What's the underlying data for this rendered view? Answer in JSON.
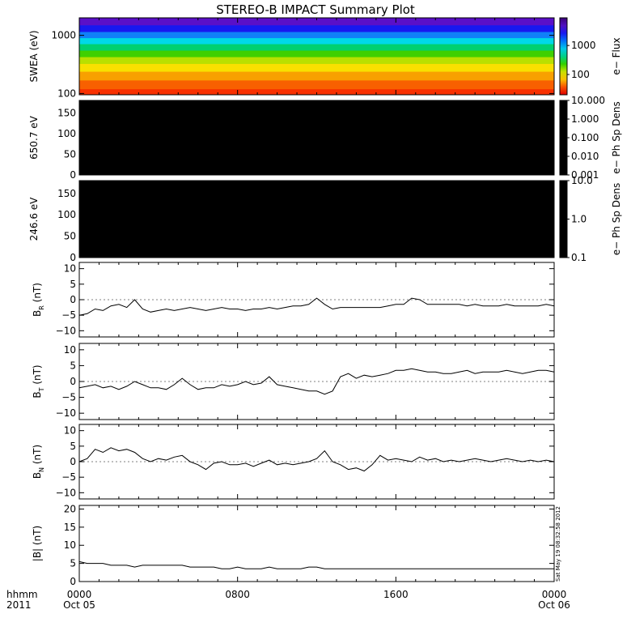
{
  "title": "STEREO-B IMPACT Summary Plot",
  "timestamp": "Sat May 19 08:32:58 2012",
  "time_axis": {
    "hhmm_label": "hhmm",
    "year_label": "2011",
    "ticks": [
      {
        "hour": 0,
        "top": "0000",
        "bottom": "Oct 05"
      },
      {
        "hour": 8,
        "top": "0800",
        "bottom": ""
      },
      {
        "hour": 16,
        "top": "1600",
        "bottom": ""
      },
      {
        "hour": 24,
        "top": "0000",
        "bottom": "Oct 06"
      }
    ]
  },
  "chart_data": [
    {
      "type": "heatmap",
      "panel": "swea",
      "ylabel": "SWEA (eV)",
      "ylog": true,
      "ylim": [
        95,
        2000
      ],
      "yticks": [
        {
          "value": 1000,
          "label": "1000"
        },
        {
          "value": 100,
          "label": "100"
        }
      ],
      "colorbar": {
        "label": "e− Flux",
        "log": true,
        "range": [
          20,
          9000
        ],
        "ticks": [
          {
            "value": 1000,
            "label": "1000"
          },
          {
            "value": 100,
            "label": "100"
          }
        ]
      },
      "bands": [
        {
          "energy_ev": 1700,
          "color": "#5a10c8"
        },
        {
          "energy_ev": 1300,
          "color": "#1818f0"
        },
        {
          "energy_ev": 1000,
          "color": "#1080f8"
        },
        {
          "energy_ev": 800,
          "color": "#00d8e8"
        },
        {
          "energy_ev": 620,
          "color": "#00d070"
        },
        {
          "energy_ev": 480,
          "color": "#40d000"
        },
        {
          "energy_ev": 370,
          "color": "#b8e000"
        },
        {
          "energy_ev": 280,
          "color": "#f8e000"
        },
        {
          "energy_ev": 200,
          "color": "#f8a000"
        },
        {
          "energy_ev": 140,
          "color": "#f86000"
        },
        {
          "energy_ev": 100,
          "color": "#f83000"
        }
      ]
    },
    {
      "type": "heatmap",
      "panel": "pad_650",
      "ylabel": "650.7 eV",
      "ylim": [
        0,
        180
      ],
      "yticks": [
        {
          "value": 150,
          "label": "150"
        },
        {
          "value": 100,
          "label": "100"
        },
        {
          "value": 50,
          "label": "50"
        },
        {
          "value": 0,
          "label": "0"
        }
      ],
      "fill": "#000000",
      "colorbar": {
        "label": "e− Ph Sp Dens",
        "log": true,
        "range": [
          0.001,
          10
        ],
        "ticks": [
          {
            "value": 10,
            "label": "10.000"
          },
          {
            "value": 1,
            "label": "1.000"
          },
          {
            "value": 0.1,
            "label": "0.100"
          },
          {
            "value": 0.01,
            "label": "0.010"
          },
          {
            "value": 0.001,
            "label": "0.001"
          }
        ]
      }
    },
    {
      "type": "heatmap",
      "panel": "pad_246",
      "ylabel": "246.6 eV",
      "ylim": [
        0,
        180
      ],
      "yticks": [
        {
          "value": 150,
          "label": "150"
        },
        {
          "value": 100,
          "label": "100"
        },
        {
          "value": 50,
          "label": "50"
        },
        {
          "value": 0,
          "label": "0"
        }
      ],
      "fill": "#000000",
      "colorbar": {
        "label": "e− Ph Sp Dens",
        "log": true,
        "range": [
          0.1,
          10
        ],
        "ticks": [
          {
            "value": 10,
            "label": "10.0"
          },
          {
            "value": 1,
            "label": "1.0"
          },
          {
            "value": 0.1,
            "label": "0.1"
          }
        ]
      }
    },
    {
      "type": "line",
      "panel": "br",
      "ylabel_main": "B",
      "ylabel_sub": "R",
      "ylabel_unit": " (nT)",
      "ylim": [
        -12,
        12
      ],
      "yticks": [
        {
          "value": 10,
          "label": "10"
        },
        {
          "value": 5,
          "label": "5"
        },
        {
          "value": 0,
          "label": "0"
        },
        {
          "value": -5,
          "label": "−5"
        },
        {
          "value": -10,
          "label": "−10"
        }
      ],
      "hours": [
        0,
        0.4,
        0.8,
        1.2,
        1.6,
        2.0,
        2.4,
        2.8,
        3.2,
        3.6,
        4.0,
        4.4,
        4.8,
        5.2,
        5.6,
        6.0,
        6.4,
        6.8,
        7.2,
        7.6,
        8.0,
        8.4,
        8.8,
        9.2,
        9.6,
        10.0,
        10.4,
        10.8,
        11.2,
        11.6,
        12.0,
        12.4,
        12.8,
        13.2,
        13.6,
        14.0,
        14.4,
        14.8,
        15.2,
        15.6,
        16.0,
        16.4,
        16.8,
        17.2,
        17.6,
        18.0,
        18.4,
        18.8,
        19.2,
        19.6,
        20.0,
        20.4,
        20.8,
        21.2,
        21.6,
        22.0,
        22.4,
        22.8,
        23.2,
        23.6,
        24.0
      ],
      "values": [
        -5,
        -4.5,
        -3,
        -3.5,
        -2,
        -1.5,
        -2.5,
        0,
        -3,
        -4,
        -3.5,
        -3,
        -3.5,
        -3,
        -2.5,
        -3,
        -3.5,
        -3,
        -2.5,
        -3,
        -3,
        -3.5,
        -3,
        -3,
        -2.5,
        -3,
        -2.5,
        -2,
        -2,
        -1.5,
        0.5,
        -1.5,
        -3,
        -2.5,
        -2.5,
        -2.5,
        -2.5,
        -2.5,
        -2.5,
        -2,
        -1.5,
        -1.5,
        0.5,
        0,
        -1.5,
        -1.5,
        -1.5,
        -1.5,
        -1.5,
        -2,
        -1.5,
        -2,
        -2,
        -2,
        -1.5,
        -2,
        -2,
        -2,
        -2,
        -1.5,
        -2
      ]
    },
    {
      "type": "line",
      "panel": "bt",
      "ylabel_main": "B",
      "ylabel_sub": "T",
      "ylabel_unit": " (nT)",
      "ylim": [
        -12,
        12
      ],
      "yticks": [
        {
          "value": 10,
          "label": "10"
        },
        {
          "value": 5,
          "label": "5"
        },
        {
          "value": 0,
          "label": "0"
        },
        {
          "value": -5,
          "label": "−5"
        },
        {
          "value": -10,
          "label": "−10"
        }
      ],
      "hours": [
        0,
        0.4,
        0.8,
        1.2,
        1.6,
        2.0,
        2.4,
        2.8,
        3.2,
        3.6,
        4.0,
        4.4,
        4.8,
        5.2,
        5.6,
        6.0,
        6.4,
        6.8,
        7.2,
        7.6,
        8.0,
        8.4,
        8.8,
        9.2,
        9.6,
        10.0,
        10.4,
        10.8,
        11.2,
        11.6,
        12.0,
        12.4,
        12.8,
        13.2,
        13.6,
        14.0,
        14.4,
        14.8,
        15.2,
        15.6,
        16.0,
        16.4,
        16.8,
        17.2,
        17.6,
        18.0,
        18.4,
        18.8,
        19.2,
        19.6,
        20.0,
        20.4,
        20.8,
        21.2,
        21.6,
        22.0,
        22.4,
        22.8,
        23.2,
        23.6,
        24.0
      ],
      "values": [
        -2,
        -1.5,
        -1,
        -2,
        -1.5,
        -2.5,
        -1.5,
        0,
        -1,
        -2,
        -2,
        -2.5,
        -1,
        1,
        -1,
        -2.5,
        -2,
        -2,
        -1,
        -1.5,
        -1,
        0,
        -1,
        -0.5,
        1.5,
        -1,
        -1.5,
        -2,
        -2.5,
        -3,
        -3,
        -4,
        -3,
        1.5,
        2.5,
        1,
        2,
        1.5,
        2,
        2.5,
        3.5,
        3.5,
        4,
        3.5,
        3,
        3,
        2.5,
        2.5,
        3,
        3.5,
        2.5,
        3,
        3,
        3,
        3.5,
        3,
        2.5,
        3,
        3.5,
        3.5,
        3
      ]
    },
    {
      "type": "line",
      "panel": "bn",
      "ylabel_main": "B",
      "ylabel_sub": "N",
      "ylabel_unit": " (nT)",
      "ylim": [
        -12,
        12
      ],
      "yticks": [
        {
          "value": 10,
          "label": "10"
        },
        {
          "value": 5,
          "label": "5"
        },
        {
          "value": 0,
          "label": "0"
        },
        {
          "value": -5,
          "label": "−5"
        },
        {
          "value": -10,
          "label": "−10"
        }
      ],
      "hours": [
        0,
        0.4,
        0.8,
        1.2,
        1.6,
        2.0,
        2.4,
        2.8,
        3.2,
        3.6,
        4.0,
        4.4,
        4.8,
        5.2,
        5.6,
        6.0,
        6.4,
        6.8,
        7.2,
        7.6,
        8.0,
        8.4,
        8.8,
        9.2,
        9.6,
        10.0,
        10.4,
        10.8,
        11.2,
        11.6,
        12.0,
        12.4,
        12.8,
        13.2,
        13.6,
        14.0,
        14.4,
        14.8,
        15.2,
        15.6,
        16.0,
        16.4,
        16.8,
        17.2,
        17.6,
        18.0,
        18.4,
        18.8,
        19.2,
        19.6,
        20.0,
        20.4,
        20.8,
        21.2,
        21.6,
        22.0,
        22.4,
        22.8,
        23.2,
        23.6,
        24.0
      ],
      "values": [
        0,
        1,
        4,
        3,
        4.5,
        3.5,
        4,
        3,
        1,
        0,
        1,
        0.5,
        1.5,
        2,
        0,
        -1,
        -2.5,
        -0.5,
        0,
        -1,
        -1,
        -0.5,
        -1.5,
        -0.5,
        0.5,
        -1,
        -0.5,
        -1,
        -0.5,
        0,
        1,
        3.5,
        0,
        -1,
        -2.5,
        -2,
        -3,
        -1,
        2,
        0.5,
        1,
        0.5,
        0,
        1.5,
        0.5,
        1,
        0,
        0.5,
        0,
        0.5,
        1,
        0.5,
        0,
        0.5,
        1,
        0.5,
        0,
        0.5,
        0,
        0.5,
        0
      ]
    },
    {
      "type": "line",
      "panel": "bmag",
      "ylabel_main": "|B|",
      "ylabel_sub": "",
      "ylabel_unit": " (nT)",
      "ylim": [
        0,
        21
      ],
      "yticks": [
        {
          "value": 20,
          "label": "20"
        },
        {
          "value": 15,
          "label": "15"
        },
        {
          "value": 10,
          "label": "10"
        },
        {
          "value": 5,
          "label": "5"
        },
        {
          "value": 0,
          "label": "0"
        }
      ],
      "hours": [
        0,
        0.4,
        0.8,
        1.2,
        1.6,
        2.0,
        2.4,
        2.8,
        3.2,
        3.6,
        4.0,
        4.4,
        4.8,
        5.2,
        5.6,
        6.0,
        6.4,
        6.8,
        7.2,
        7.6,
        8.0,
        8.4,
        8.8,
        9.2,
        9.6,
        10.0,
        10.4,
        10.8,
        11.2,
        11.6,
        12.0,
        12.4,
        12.8,
        13.2,
        13.6,
        14.0,
        14.4,
        14.8,
        15.2,
        15.6,
        16.0,
        16.4,
        16.8,
        17.2,
        17.6,
        18.0,
        18.4,
        18.8,
        19.2,
        19.6,
        20.0,
        20.4,
        20.8,
        21.2,
        21.6,
        22.0,
        22.4,
        22.8,
        23.2,
        23.6,
        24.0
      ],
      "values": [
        5.5,
        5,
        5,
        5,
        4.5,
        4.5,
        4.5,
        4,
        4.5,
        4.5,
        4.5,
        4.5,
        4.5,
        4.5,
        4,
        4,
        4,
        4,
        3.5,
        3.5,
        4,
        3.5,
        3.5,
        3.5,
        4,
        3.5,
        3.5,
        3.5,
        3.5,
        4,
        4,
        3.5,
        3.5,
        3.5,
        3.5,
        3.5,
        3.5,
        3.5,
        3.5,
        3.5,
        3.5,
        3.5,
        3.5,
        3.5,
        3.5,
        3.5,
        3.5,
        3.5,
        3.5,
        3.5,
        3.5,
        3.5,
        3.5,
        3.5,
        3.5,
        3.5,
        3.5,
        3.5,
        3.5,
        3.5,
        3.5
      ]
    }
  ]
}
